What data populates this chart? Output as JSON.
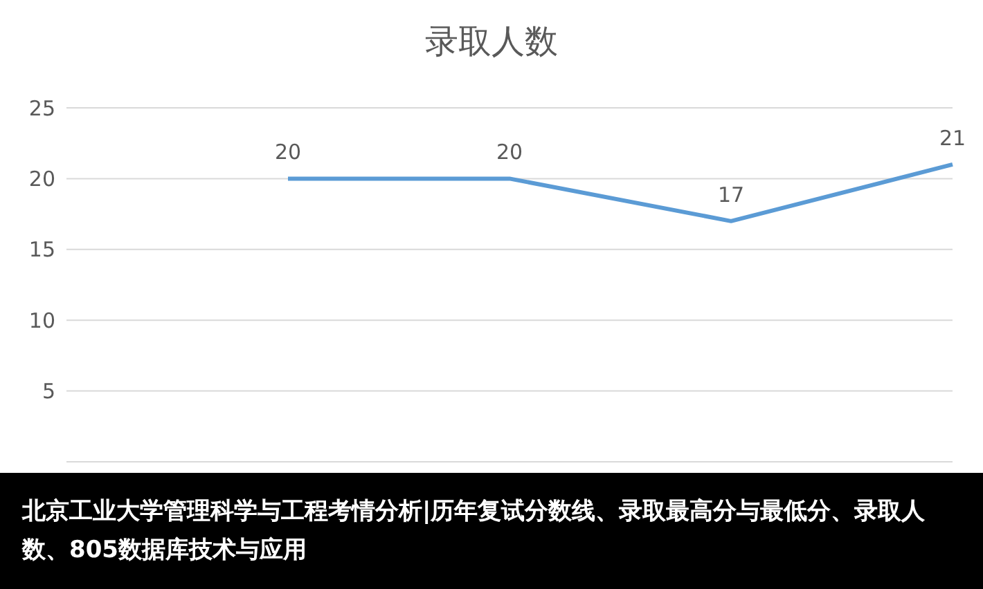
{
  "chart_data": {
    "type": "line",
    "title": "录取人数",
    "categories": [
      null,
      null,
      null,
      null,
      null
    ],
    "series": [
      {
        "color": "#5b9bd5",
        "values": [
          null,
          20,
          20,
          17,
          21
        ]
      }
    ],
    "ylim": [
      0,
      25
    ],
    "yticks": [
      5,
      10,
      15,
      20,
      25
    ],
    "grid": "y",
    "tick_labels": "y",
    "data_labels": true,
    "marker": "none",
    "line_style": "solid",
    "legend": false,
    "annotations": [
      "北京工业大学管理科学与工程考情分析|历年复试分数线、录取最高分与最低分、录取人数、805数据库技术与应用"
    ]
  }
}
